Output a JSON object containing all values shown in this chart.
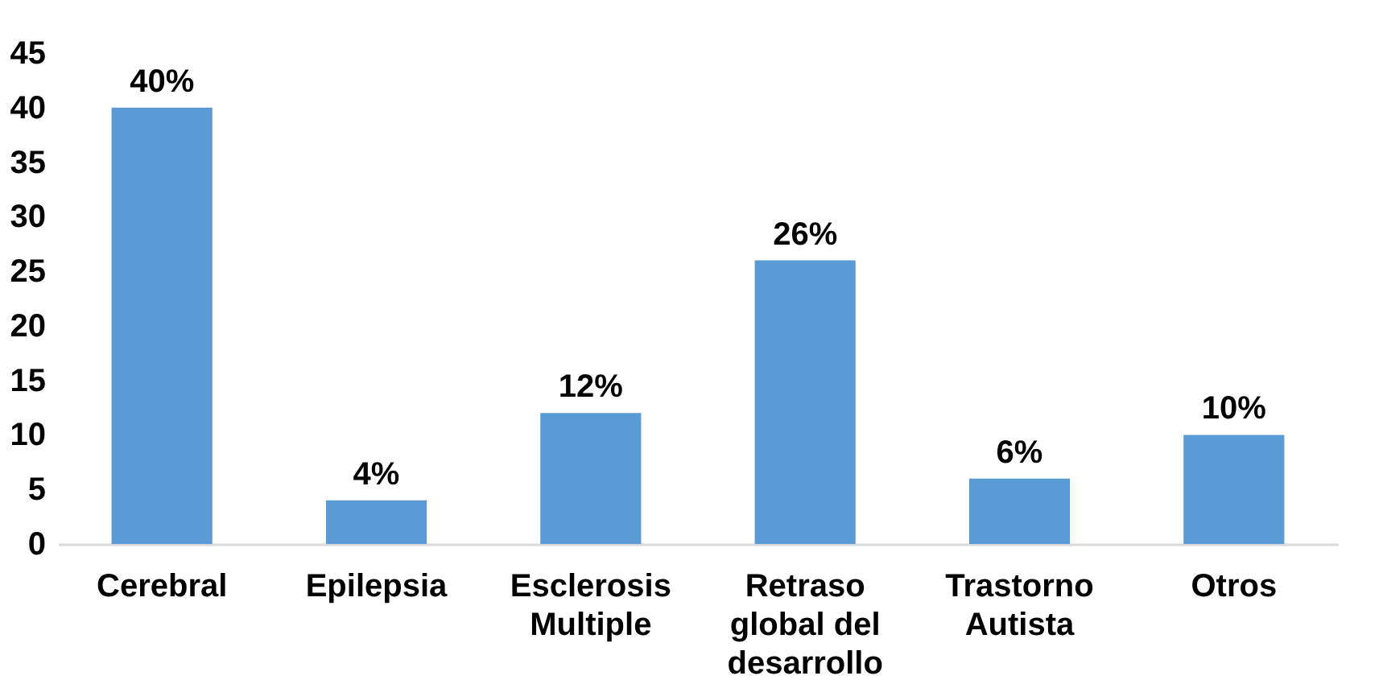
{
  "chart_data": {
    "type": "bar",
    "categories": [
      "Cerebral",
      "Epilepsia",
      "Esclerosis Multiple",
      "Retraso global del desarrollo",
      "Trastorno Autista",
      "Otros"
    ],
    "values": [
      40,
      4,
      12,
      26,
      6,
      10
    ],
    "value_labels": [
      "40%",
      "4%",
      "12%",
      "26%",
      "6%",
      "10%"
    ],
    "color": "#5b9bd5",
    "ylim": [
      0,
      45
    ],
    "yticks": [
      0,
      5,
      10,
      15,
      20,
      25,
      30,
      35,
      40,
      45
    ],
    "grid": false
  }
}
